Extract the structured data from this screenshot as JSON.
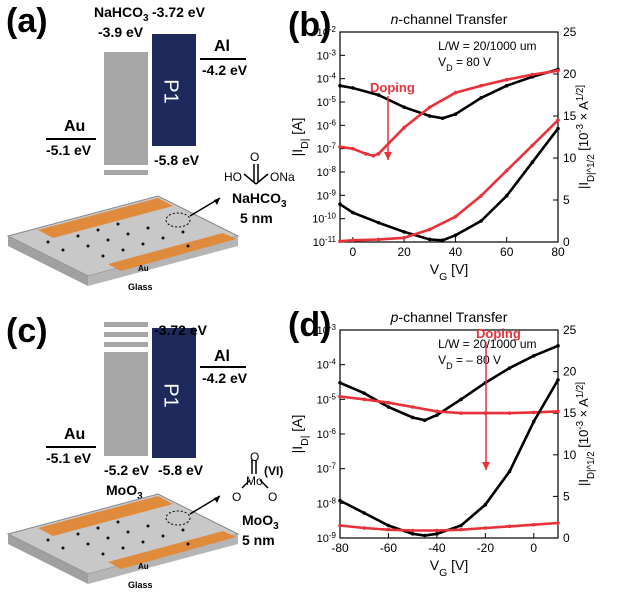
{
  "colors": {
    "gray": "#a6a6a6",
    "navy": "#1f2a5c",
    "red": "#e8313a",
    "black": "#000000",
    "orange": "#e08a3c"
  },
  "panel_a": {
    "label": "(a)",
    "nahco3_label": "NaHCO",
    "nahco3_sub": "3",
    "nahco3_lumo": "-3.72 eV",
    "nahco3_wf": "-3.9 eV",
    "p1": "P1",
    "al": "Al",
    "al_wf": "-4.2 eV",
    "au": "Au",
    "au_wf": "-5.1 eV",
    "p1_homo": "-5.8 eV",
    "mol_ho": "HO",
    "mol_o": "O",
    "mol_ona": "ONa",
    "mol_name": "NaHCO",
    "mol_name_sub": "3",
    "thickness": "5 nm",
    "glass": "Glass",
    "au_stripe": "Au"
  },
  "panel_c": {
    "label": "(c)",
    "p1_lumo": "-3.72 eV",
    "p1": "P1",
    "al": "Al",
    "al_wf": "-4.2 eV",
    "au": "Au",
    "au_wf": "-5.1 eV",
    "moo3_wf": "-5.2 eV",
    "p1_homo": "-5.8 eV",
    "moo3_label": "MoO",
    "moo3_sub": "3",
    "mol_mo": "Mo",
    "mol_o": "O",
    "mol_vi": "(VI)",
    "mol_name": "MoO",
    "mol_name_sub": "3",
    "thickness": "5 nm",
    "glass": "Glass",
    "au_stripe": "Au"
  },
  "chart_data": [
    {
      "type": "line",
      "panel": "(b)",
      "title": "n-channel Transfer",
      "annotation_lw": "L/W = 20/1000 um",
      "annotation_vd": "V_D = 80 V",
      "doping_label": "Doping",
      "xlabel": "V_G [V]",
      "ylabel_left": "|I_D| [A]",
      "ylabel_right": "|I_D|^1/2 [10^-3 × A^1/2]",
      "xlim": [
        -5,
        80
      ],
      "ylim_left_log": [
        1e-11,
        0.01
      ],
      "ylim_right": [
        0,
        25
      ],
      "x_ticks": [
        "0",
        "20",
        "40",
        "60",
        "80"
      ],
      "y_left_ticks": [
        "10-11",
        "10-10",
        "10-9",
        "10-8",
        "10-7",
        "10-6",
        "10-5",
        "10-4",
        "10-3",
        "10-2"
      ],
      "y_right_ticks": [
        "0",
        "5",
        "10",
        "15",
        "20",
        "25"
      ],
      "series": [
        {
          "color": "black",
          "axis": "left",
          "x": [
            -5,
            0,
            10,
            20,
            30,
            35,
            40,
            50,
            60,
            70,
            80
          ],
          "y": [
            5e-05,
            4e-05,
            2e-05,
            6e-06,
            2.5e-06,
            2e-06,
            3e-06,
            1.5e-05,
            5e-05,
            0.00012,
            0.00025
          ]
        },
        {
          "color": "red",
          "axis": "left",
          "x": [
            -5,
            0,
            5,
            8,
            10,
            20,
            30,
            40,
            50,
            60,
            70,
            80
          ],
          "y": [
            1.2e-07,
            1e-07,
            6e-08,
            5e-08,
            6e-08,
            8e-07,
            6e-06,
            2.5e-05,
            5e-05,
            9e-05,
            0.00015,
            0.00022
          ]
        },
        {
          "color": "black",
          "axis": "right",
          "x": [
            -5,
            0,
            10,
            20,
            30,
            35,
            40,
            50,
            60,
            70,
            80
          ],
          "y": [
            4.5,
            3.5,
            2.3,
            1.2,
            0.3,
            0.2,
            0.8,
            2.5,
            5.5,
            9.5,
            13.5
          ]
        },
        {
          "color": "red",
          "axis": "right",
          "x": [
            -5,
            0,
            10,
            20,
            30,
            40,
            50,
            60,
            70,
            80
          ],
          "y": [
            0.1,
            0.2,
            0.3,
            0.5,
            1.5,
            3,
            5.5,
            8.5,
            11.5,
            14.5
          ]
        }
      ]
    },
    {
      "type": "line",
      "panel": "(d)",
      "title": "p-channel Transfer",
      "annotation_lw": "L/W = 20/1000 um",
      "annotation_vd": "V_D = – 80 V",
      "doping_label": "Doping",
      "xlabel": "V_G [V]",
      "ylabel_left": "|I_D| [A]",
      "ylabel_right": "|I_D|^1/2 [10^-3 × A^1/2]",
      "xlim": [
        -80,
        10
      ],
      "ylim_left_log": [
        1e-09,
        0.001
      ],
      "ylim_right": [
        0,
        25
      ],
      "x_ticks": [
        "-80",
        "-60",
        "-40",
        "-20",
        "0"
      ],
      "y_left_ticks": [
        "10-9",
        "10-8",
        "10-7",
        "10-6",
        "10-5",
        "10-4",
        "10-3"
      ],
      "y_right_ticks": [
        "0",
        "5",
        "10",
        "15",
        "20",
        "25"
      ],
      "series": [
        {
          "color": "black",
          "axis": "left",
          "x": [
            -80,
            -70,
            -60,
            -50,
            -45,
            -40,
            -30,
            -20,
            -10,
            0,
            10
          ],
          "y": [
            3e-05,
            1.5e-05,
            6e-06,
            3e-06,
            2.5e-06,
            3.5e-06,
            1e-05,
            3e-05,
            8e-05,
            0.00018,
            0.00035
          ]
        },
        {
          "color": "red",
          "axis": "left",
          "x": [
            -80,
            -70,
            -60,
            -50,
            -40,
            -30,
            -20,
            -10,
            0,
            10
          ],
          "y": [
            1.2e-05,
            1e-05,
            8e-06,
            6e-06,
            4.5e-06,
            4e-06,
            4e-06,
            4e-06,
            4.2e-06,
            4.5e-06
          ]
        },
        {
          "color": "black",
          "axis": "right",
          "x": [
            -80,
            -70,
            -60,
            -50,
            -45,
            -40,
            -30,
            -20,
            -10,
            0,
            10
          ],
          "y": [
            4.5,
            3,
            1.5,
            0.5,
            0.3,
            0.5,
            1.5,
            4,
            8,
            14,
            19
          ]
        },
        {
          "color": "red",
          "axis": "right",
          "x": [
            -80,
            -70,
            -60,
            -50,
            -40,
            -30,
            -20,
            -10,
            0,
            10
          ],
          "y": [
            1.5,
            1.2,
            1,
            0.9,
            0.9,
            1,
            1.2,
            1.4,
            1.6,
            1.8
          ]
        }
      ]
    }
  ]
}
